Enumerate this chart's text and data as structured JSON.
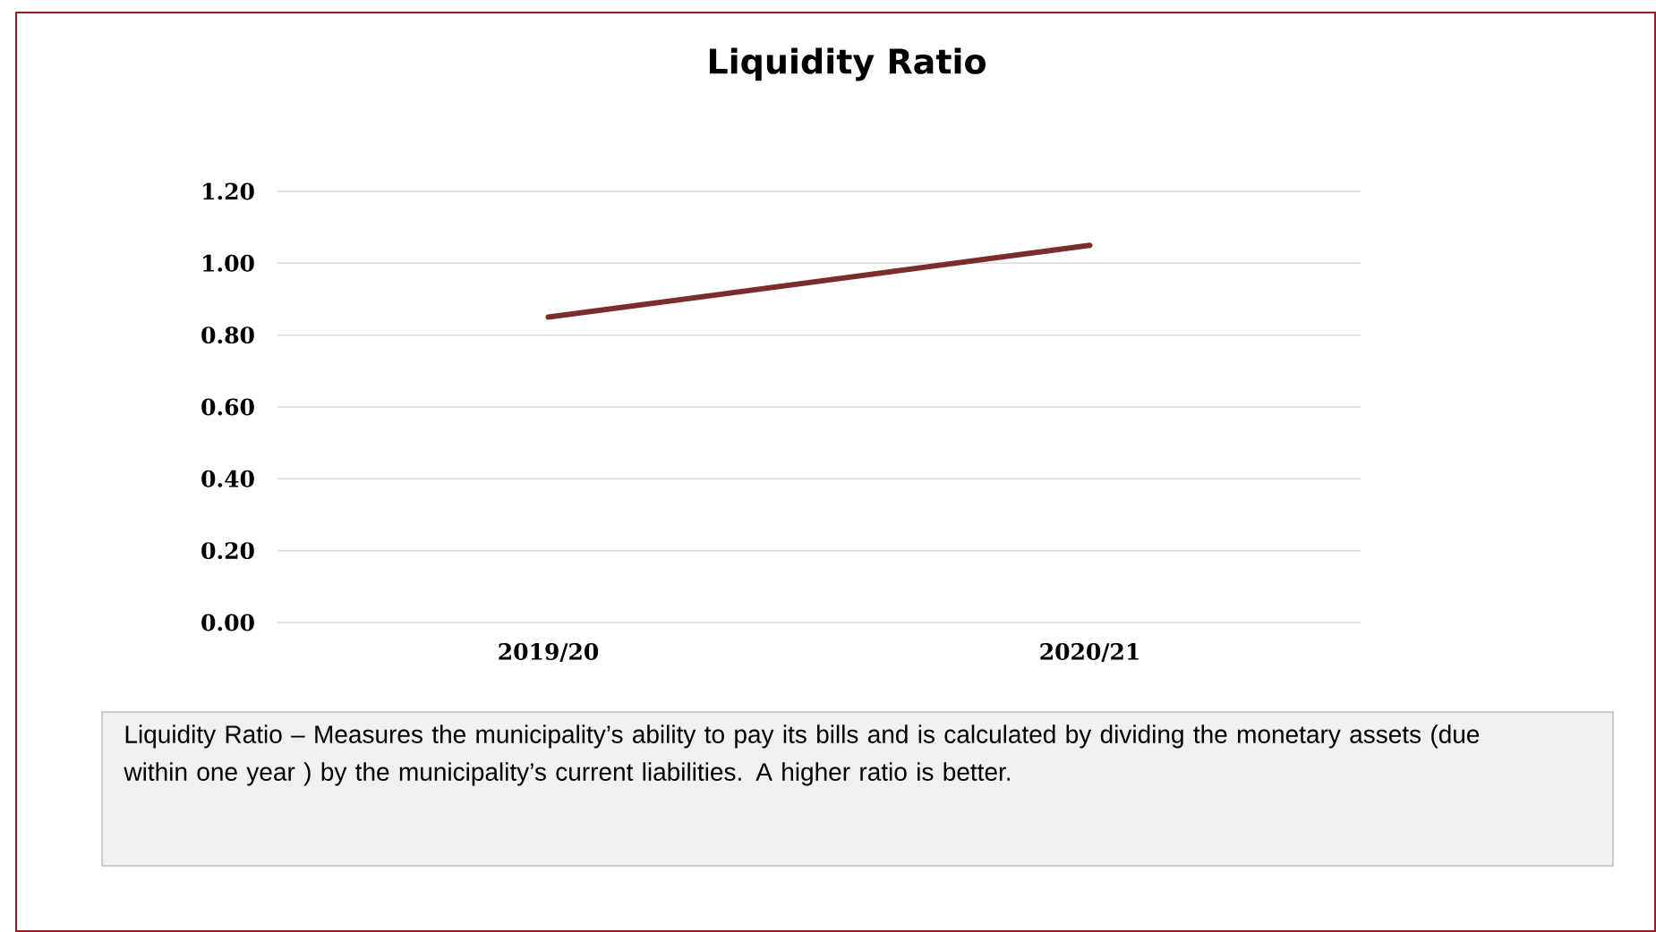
{
  "chart_data": {
    "type": "line",
    "title": "Liquidity Ratio",
    "categories": [
      "2019/20",
      "2020/21"
    ],
    "series": [
      {
        "color": "#7b2c2c",
        "values": [
          0.85,
          1.05
        ]
      }
    ],
    "ylim": [
      0,
      1.2
    ],
    "yticks": [
      {
        "value": 0,
        "label": "0.00"
      },
      {
        "value": 0.2,
        "label": "0.20"
      },
      {
        "value": 0.4,
        "label": "0.40"
      },
      {
        "value": 0.6,
        "label": "0.60"
      },
      {
        "value": 0.8,
        "label": "0.80"
      },
      {
        "value": 1.0,
        "label": "1.00"
      },
      {
        "value": 1.2,
        "label": "1.20"
      }
    ],
    "grid": "y",
    "annotations": [
      "Liquidity Ratio – Measures the municipality’s ability to pay its bills and is calculated by dividing the monetary assets (due within one year ) by the municipality’s current liabilities. A higher ratio is better."
    ]
  }
}
